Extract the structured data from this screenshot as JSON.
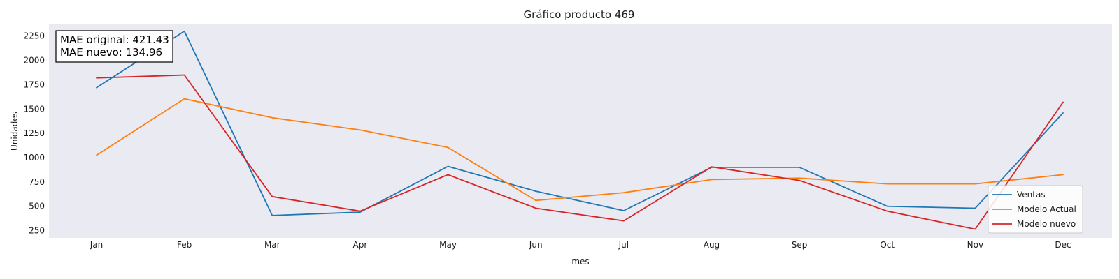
{
  "chart_data": {
    "type": "line",
    "title": "Gráfico producto 469",
    "xlabel": "mes",
    "ylabel": "Unidades",
    "categories": [
      "Jan",
      "Feb",
      "Mar",
      "Apr",
      "May",
      "Jun",
      "Jul",
      "Aug",
      "Sep",
      "Oct",
      "Nov",
      "Dec"
    ],
    "yticks": [
      250,
      500,
      750,
      1000,
      1250,
      1500,
      1750,
      2000,
      2250
    ],
    "ylim": [
      175,
      2370
    ],
    "grid": false,
    "legend_position": "bottom-right",
    "annotation": [
      "MAE original: 421.43",
      "MAE nuevo: 134.96"
    ],
    "series": [
      {
        "name": "Ventas",
        "color": "#1f77b4",
        "values": [
          1720,
          2300,
          405,
          440,
          910,
          655,
          455,
          900,
          900,
          500,
          480,
          1460
        ]
      },
      {
        "name": "Modelo Actual",
        "color": "#ff7f0e",
        "values": [
          1025,
          1605,
          1410,
          1285,
          1105,
          560,
          640,
          775,
          790,
          730,
          730,
          825
        ]
      },
      {
        "name": "Modelo nuevo",
        "color": "#d62728",
        "values": [
          1820,
          1850,
          600,
          450,
          825,
          480,
          350,
          905,
          765,
          450,
          265,
          1570
        ]
      }
    ],
    "colors": {
      "plot_background": "#eaeaf2"
    }
  }
}
